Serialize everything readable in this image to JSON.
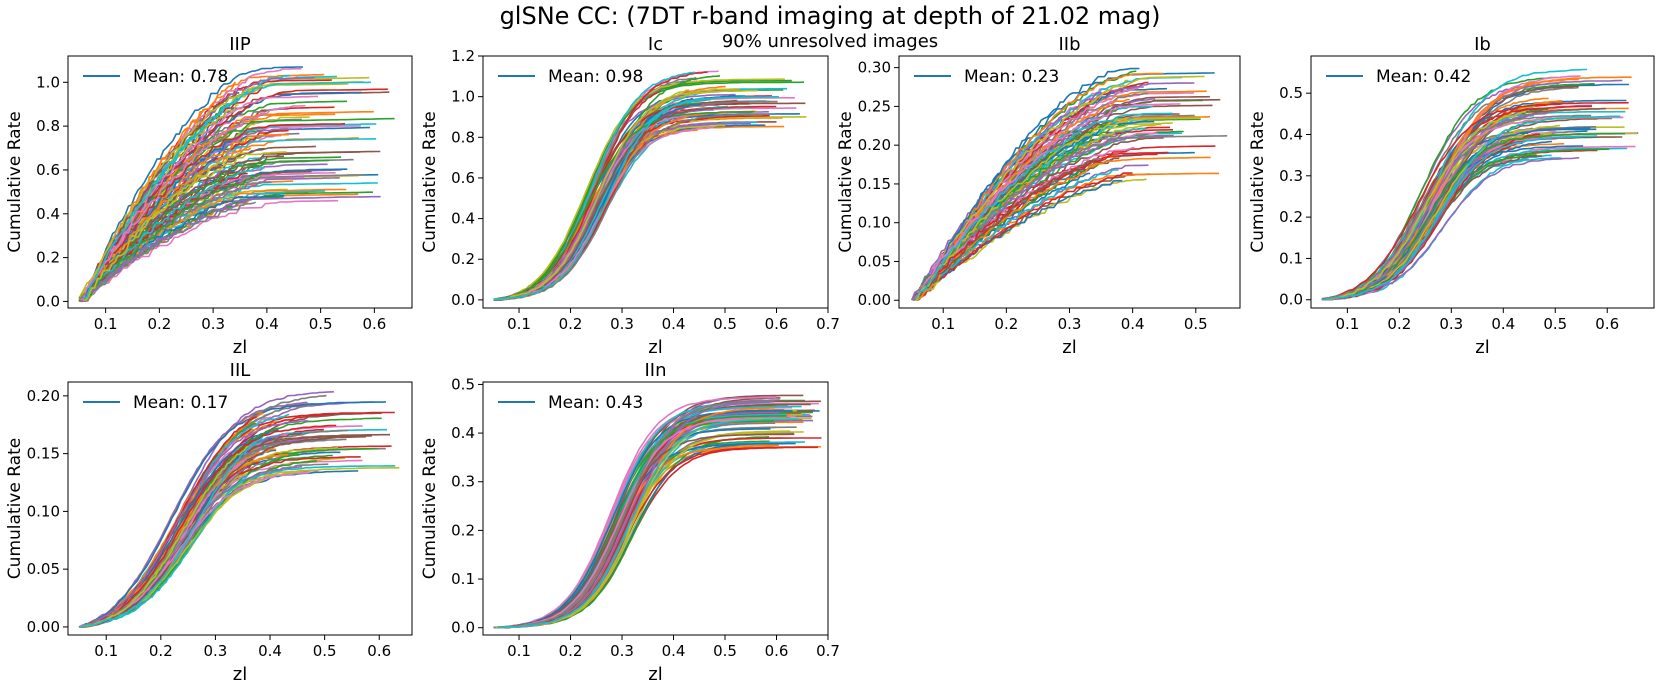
{
  "figure": {
    "title": "glSNe CC: (7DT  r-band imaging at depth of 21.02 mag)",
    "subtitle": "90% unresolved images"
  },
  "colors": {
    "palette": [
      "#1f77b4",
      "#ff7f0e",
      "#2ca02c",
      "#d62728",
      "#9467bd",
      "#8c564b",
      "#e377c2",
      "#7f7f7f",
      "#bcbd22",
      "#17becf"
    ],
    "axis": "#000000",
    "legend_line": "#1f77b4"
  },
  "chart_data": [
    {
      "type": "line",
      "title": "IIP",
      "xlabel": "zl",
      "ylabel": "Cumulative Rate",
      "xlim": [
        0.03,
        0.67
      ],
      "ylim": [
        -0.03,
        1.12
      ],
      "xticks": [
        0.1,
        0.2,
        0.3,
        0.4,
        0.5,
        0.6
      ],
      "xtick_labels": [
        "0.1",
        "0.2",
        "0.3",
        "0.4",
        "0.5",
        "0.6"
      ],
      "yticks": [
        0.0,
        0.2,
        0.4,
        0.6,
        0.8,
        1.0
      ],
      "ytick_labels": [
        "0.0",
        "0.2",
        "0.4",
        "0.6",
        "0.8",
        "1.0"
      ],
      "legend": "Mean: 0.78",
      "legend_position": "upper-left",
      "n_series": 100,
      "curve_model": {
        "shape": "gradual-rise",
        "x_start": 0.055,
        "x_mid": 0.28,
        "final_mean": 0.78,
        "final_min": 0.45,
        "final_max": 1.08,
        "x_end_min": 0.33,
        "x_end_max": 0.64,
        "jitter": 0.035
      }
    },
    {
      "type": "line",
      "title": "Ic",
      "xlabel": "zl",
      "ylabel": "Cumulative Rate",
      "xlim": [
        0.03,
        0.7
      ],
      "ylim": [
        -0.04,
        1.2
      ],
      "xticks": [
        0.1,
        0.2,
        0.3,
        0.4,
        0.5,
        0.6,
        0.7
      ],
      "xtick_labels": [
        "0.1",
        "0.2",
        "0.3",
        "0.4",
        "0.5",
        "0.6",
        "0.7"
      ],
      "yticks": [
        0.0,
        0.2,
        0.4,
        0.6,
        0.8,
        1.0,
        1.2
      ],
      "ytick_labels": [
        "0.0",
        "0.2",
        "0.4",
        "0.6",
        "0.8",
        "1.0",
        "1.2"
      ],
      "legend": "Mean: 0.98",
      "legend_position": "upper-left",
      "n_series": 70,
      "curve_model": {
        "shape": "sigmoid",
        "x_start": 0.055,
        "x_mid": 0.25,
        "width": 0.045,
        "final_mean": 0.98,
        "final_min": 0.84,
        "final_max": 1.15,
        "x_end_min": 0.43,
        "x_end_max": 0.67,
        "jitter": 0.01
      }
    },
    {
      "type": "line",
      "title": "IIb",
      "xlabel": "zl",
      "ylabel": "Cumulative Rate",
      "xlim": [
        0.03,
        0.57
      ],
      "ylim": [
        -0.01,
        0.315
      ],
      "xticks": [
        0.1,
        0.2,
        0.3,
        0.4,
        0.5
      ],
      "xtick_labels": [
        "0.1",
        "0.2",
        "0.3",
        "0.4",
        "0.5"
      ],
      "yticks": [
        0.0,
        0.05,
        0.1,
        0.15,
        0.2,
        0.25,
        0.3
      ],
      "ytick_labels": [
        "0.00",
        "0.05",
        "0.10",
        "0.15",
        "0.20",
        "0.25",
        "0.30"
      ],
      "legend": "Mean: 0.23",
      "legend_position": "upper-left",
      "n_series": 80,
      "curve_model": {
        "shape": "gradual-rise",
        "x_start": 0.055,
        "x_mid": 0.22,
        "final_mean": 0.23,
        "final_min": 0.155,
        "final_max": 0.3,
        "x_end_min": 0.33,
        "x_end_max": 0.55,
        "jitter": 0.008
      }
    },
    {
      "type": "line",
      "title": "Ib",
      "xlabel": "zl",
      "ylabel": "Cumulative Rate",
      "xlim": [
        0.03,
        0.69
      ],
      "ylim": [
        -0.02,
        0.59
      ],
      "xticks": [
        0.1,
        0.2,
        0.3,
        0.4,
        0.5,
        0.6
      ],
      "xtick_labels": [
        "0.1",
        "0.2",
        "0.3",
        "0.4",
        "0.5",
        "0.6"
      ],
      "yticks": [
        0.0,
        0.1,
        0.2,
        0.3,
        0.4,
        0.5
      ],
      "ytick_labels": [
        "0.0",
        "0.1",
        "0.2",
        "0.3",
        "0.4",
        "0.5"
      ],
      "legend": "Mean: 0.42",
      "legend_position": "upper-left",
      "n_series": 80,
      "curve_model": {
        "shape": "sigmoid",
        "x_start": 0.055,
        "x_mid": 0.26,
        "width": 0.05,
        "final_mean": 0.42,
        "final_min": 0.34,
        "final_max": 0.56,
        "x_end_min": 0.42,
        "x_end_max": 0.66,
        "jitter": 0.006
      }
    },
    {
      "type": "line",
      "title": "IIL",
      "xlabel": "zl",
      "ylabel": "Cumulative Rate",
      "xlim": [
        0.03,
        0.66
      ],
      "ylim": [
        -0.007,
        0.212
      ],
      "xticks": [
        0.1,
        0.2,
        0.3,
        0.4,
        0.5,
        0.6
      ],
      "xtick_labels": [
        "0.1",
        "0.2",
        "0.3",
        "0.4",
        "0.5",
        "0.6"
      ],
      "yticks": [
        0.0,
        0.05,
        0.1,
        0.15,
        0.2
      ],
      "ytick_labels": [
        "0.00",
        "0.05",
        "0.10",
        "0.15",
        "0.20"
      ],
      "legend": "Mean: 0.17",
      "legend_position": "upper-left",
      "n_series": 80,
      "curve_model": {
        "shape": "sigmoid",
        "x_start": 0.055,
        "x_mid": 0.24,
        "width": 0.055,
        "final_mean": 0.17,
        "final_min": 0.135,
        "final_max": 0.205,
        "x_end_min": 0.35,
        "x_end_max": 0.64,
        "jitter": 0.002
      }
    },
    {
      "type": "line",
      "title": "IIn",
      "xlabel": "zl",
      "ylabel": "Cumulative Rate",
      "xlim": [
        0.03,
        0.7
      ],
      "ylim": [
        -0.015,
        0.505
      ],
      "xticks": [
        0.1,
        0.2,
        0.3,
        0.4,
        0.5,
        0.6,
        0.7
      ],
      "xtick_labels": [
        "0.1",
        "0.2",
        "0.3",
        "0.4",
        "0.5",
        "0.6",
        "0.7"
      ],
      "yticks": [
        0.0,
        0.1,
        0.2,
        0.3,
        0.4,
        0.5
      ],
      "ytick_labels": [
        "0.0",
        "0.1",
        "0.2",
        "0.3",
        "0.4",
        "0.5"
      ],
      "legend": "Mean: 0.43",
      "legend_position": "upper-left",
      "n_series": 70,
      "curve_model": {
        "shape": "sigmoid",
        "x_start": 0.055,
        "x_mid": 0.3,
        "width": 0.045,
        "final_mean": 0.43,
        "final_min": 0.37,
        "final_max": 0.48,
        "x_end_min": 0.58,
        "x_end_max": 0.69,
        "jitter": 0.002
      }
    }
  ]
}
